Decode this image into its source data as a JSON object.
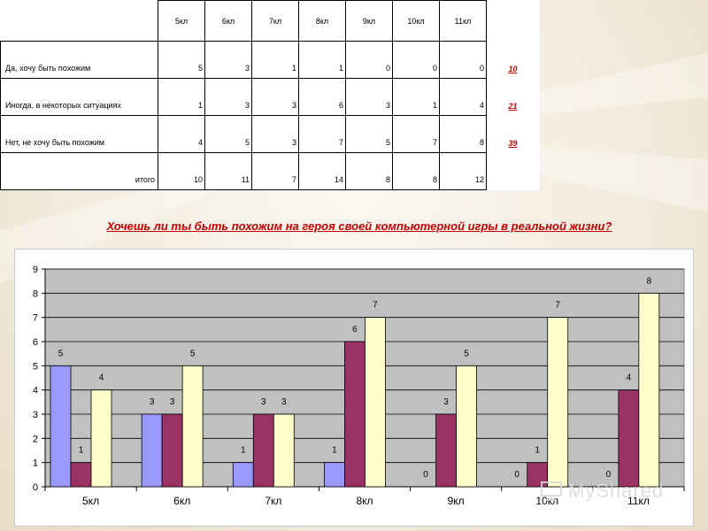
{
  "table": {
    "columns": [
      "5кл",
      "6кл",
      "7кл",
      "8кл",
      "9кл",
      "10кл",
      "11кл"
    ],
    "rows": [
      {
        "label": "Да, хочу быть похожим",
        "values": [
          "5",
          "3",
          "1",
          "1",
          "0",
          "0",
          "0"
        ],
        "sum": "10"
      },
      {
        "label": "Иногда, в некоторых ситуациях",
        "values": [
          "1",
          "3",
          "3",
          "6",
          "3",
          "1",
          "4"
        ],
        "sum": "21"
      },
      {
        "label": "Нет, не хочу быть похожим",
        "values": [
          "4",
          "5",
          "3",
          "7",
          "5",
          "7",
          "8"
        ],
        "sum": "39"
      },
      {
        "label": "итого",
        "values": [
          "10",
          "11",
          "7",
          "14",
          "8",
          "8",
          "12"
        ],
        "sum": ""
      }
    ]
  },
  "question": "Хочешь ли ты быть похожим на героя своей компьютерной игры в реальной жизни?",
  "chart_data": {
    "type": "bar",
    "categories": [
      "5кл",
      "6кл",
      "7кл",
      "8кл",
      "9кл",
      "10кл",
      "11кл"
    ],
    "series": [
      {
        "values": [
          5,
          3,
          1,
          1,
          0,
          0,
          0
        ],
        "color": "#9999ff"
      },
      {
        "values": [
          1,
          3,
          3,
          6,
          3,
          1,
          4
        ],
        "color": "#993366"
      },
      {
        "values": [
          4,
          5,
          3,
          7,
          5,
          7,
          8
        ],
        "color": "#ffffcc"
      }
    ],
    "ylim": [
      0,
      9
    ],
    "yticks": [
      "0",
      "1",
      "2",
      "3",
      "4",
      "5",
      "6",
      "7",
      "8",
      "9"
    ],
    "grid": true,
    "plot_background": "#c0c0c0",
    "data_labels": true
  },
  "watermark": {
    "text": "MyShared",
    "icon": "presentation-screen-icon"
  }
}
